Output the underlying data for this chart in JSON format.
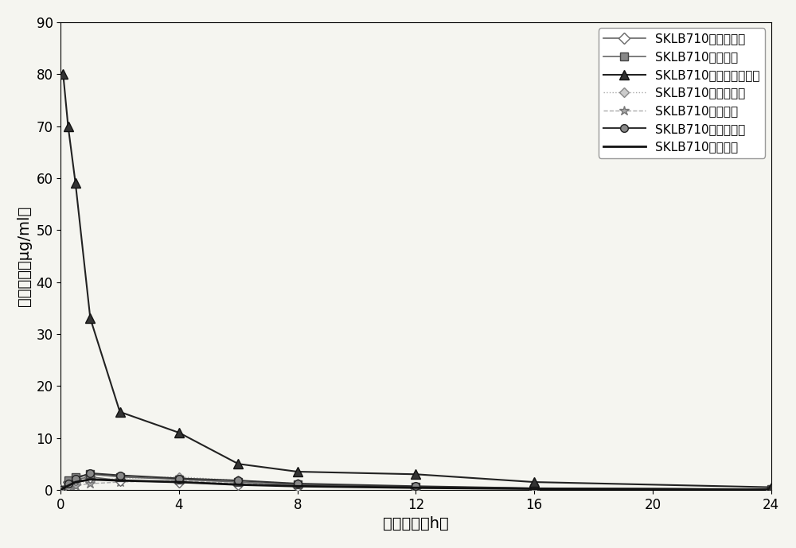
{
  "series": [
    {
      "label": "SKLB710包合物胶囊",
      "x": [
        0,
        0.25,
        0.5,
        1,
        2,
        4,
        6,
        8,
        12,
        16,
        24
      ],
      "y": [
        0,
        1.5,
        2.0,
        2.5,
        1.8,
        1.5,
        1.0,
        0.8,
        0.5,
        0.3,
        0.1
      ],
      "color": "#666666",
      "linestyle": "-",
      "marker": "D",
      "markersize": 7,
      "linewidth": 1.2,
      "markerfacecolor": "white",
      "markeredgecolor": "#666666",
      "zorder": 3
    },
    {
      "label": "SKLB710普通胶囊",
      "x": [
        0,
        0.25,
        0.5,
        1,
        2,
        4,
        6,
        8,
        12,
        16,
        24
      ],
      "y": [
        0,
        1.8,
        2.5,
        3.0,
        2.5,
        2.0,
        1.5,
        1.0,
        0.6,
        0.3,
        0.1
      ],
      "color": "#666666",
      "linestyle": "-",
      "marker": "s",
      "markersize": 7,
      "linewidth": 1.2,
      "markerfacecolor": "#888888",
      "markeredgecolor": "#444444",
      "zorder": 3
    },
    {
      "label": "SKLB710包合物静脉制剂",
      "x": [
        0.083,
        0.25,
        0.5,
        1,
        2,
        4,
        6,
        8,
        12,
        16,
        24
      ],
      "y": [
        80,
        70,
        59,
        33,
        15,
        11,
        5,
        3.5,
        3.0,
        1.5,
        0.5
      ],
      "color": "#222222",
      "linestyle": "-",
      "marker": "^",
      "markersize": 9,
      "linewidth": 1.5,
      "markerfacecolor": "#333333",
      "markeredgecolor": "#111111",
      "zorder": 5
    },
    {
      "label": "SKLB710包合物片剂",
      "x": [
        0,
        0.25,
        0.5,
        1,
        2,
        4,
        6,
        8,
        12,
        16,
        24
      ],
      "y": [
        0,
        0.5,
        1.2,
        1.8,
        2.2,
        2.5,
        1.8,
        1.2,
        0.5,
        0.2,
        0.1
      ],
      "color": "#aaaaaa",
      "linestyle": ":",
      "marker": "D",
      "markersize": 6,
      "linewidth": 1.0,
      "markerfacecolor": "#cccccc",
      "markeredgecolor": "#888888",
      "zorder": 2
    },
    {
      "label": "SKLB710普通片剂",
      "x": [
        0,
        0.25,
        0.5,
        1,
        2,
        4,
        6,
        8,
        12,
        16,
        24
      ],
      "y": [
        0,
        0.3,
        0.8,
        1.2,
        1.5,
        1.8,
        1.2,
        0.8,
        0.4,
        0.2,
        0.05
      ],
      "color": "#aaaaaa",
      "linestyle": "--",
      "marker": "*",
      "markersize": 9,
      "linewidth": 1.0,
      "markerfacecolor": "#aaaaaa",
      "markeredgecolor": "#777777",
      "zorder": 2
    },
    {
      "label": "SKLB710包合物丸剂",
      "x": [
        0,
        0.25,
        0.5,
        1,
        2,
        4,
        6,
        8,
        12,
        16,
        24
      ],
      "y": [
        0,
        1.2,
        2.2,
        3.2,
        2.8,
        2.2,
        1.8,
        1.2,
        0.7,
        0.3,
        0.1
      ],
      "color": "#333333",
      "linestyle": "-",
      "marker": "o",
      "markersize": 7,
      "linewidth": 1.5,
      "markerfacecolor": "#888888",
      "markeredgecolor": "#222222",
      "zorder": 4
    },
    {
      "label": "SKLB710普通丸剂",
      "x": [
        0,
        0.25,
        0.5,
        1,
        2,
        4,
        6,
        8,
        12,
        16,
        24
      ],
      "y": [
        0,
        0.8,
        1.5,
        2.0,
        1.8,
        1.5,
        1.0,
        0.7,
        0.4,
        0.2,
        0.05
      ],
      "color": "#111111",
      "linestyle": "-",
      "marker": "None",
      "markersize": 5,
      "linewidth": 2.0,
      "markerfacecolor": "#444444",
      "markeredgecolor": "#111111",
      "zorder": 4
    }
  ],
  "xlabel": "取血时间（h）",
  "ylabel": "血药浓度（μg/ml）",
  "xlim": [
    0,
    24
  ],
  "ylim": [
    0,
    90
  ],
  "xticks": [
    0,
    4,
    8,
    12,
    16,
    20,
    24
  ],
  "yticks": [
    0,
    10,
    20,
    30,
    40,
    50,
    60,
    70,
    80,
    90
  ],
  "background_color": "#f5f5f0",
  "font_size": 12,
  "label_font_size": 14,
  "tick_font_size": 12,
  "legend_fontsize": 11,
  "figure_width": 10.0,
  "figure_height": 6.89
}
